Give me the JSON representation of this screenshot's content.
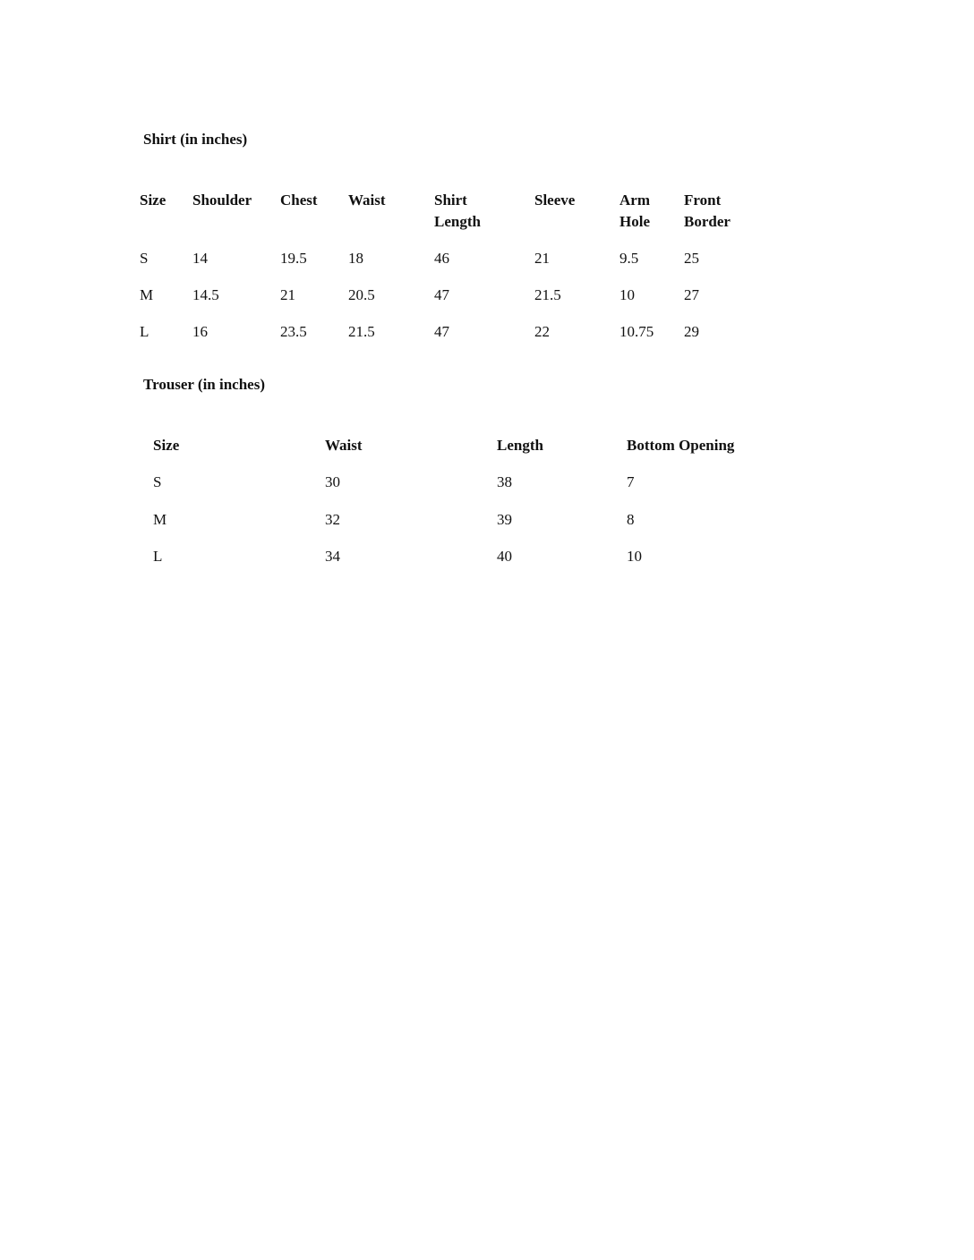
{
  "shirt": {
    "title": "Shirt (in inches)",
    "headers": [
      "Size",
      "Shoulder",
      "Chest",
      "Waist",
      "Shirt Length",
      "Sleeve",
      "Arm Hole",
      "Front Border"
    ],
    "rows": [
      [
        "S",
        "14",
        "19.5",
        "18",
        "46",
        "21",
        "9.5",
        "25"
      ],
      [
        "M",
        "14.5",
        "21",
        "20.5",
        "47",
        "21.5",
        "10",
        "27"
      ],
      [
        "L",
        "16",
        "23.5",
        "21.5",
        "47",
        "22",
        "10.75",
        "29"
      ]
    ]
  },
  "trouser": {
    "title": "Trouser (in inches)",
    "headers": [
      "Size",
      "Waist",
      "Length",
      "Bottom Opening"
    ],
    "rows": [
      [
        "S",
        "30",
        "38",
        "7"
      ],
      [
        "M",
        "32",
        "39",
        "8"
      ],
      [
        "L",
        "34",
        "40",
        "10"
      ]
    ]
  }
}
